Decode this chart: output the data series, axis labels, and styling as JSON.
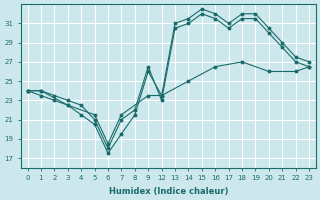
{
  "xlabel": "Humidex (Indice chaleur)",
  "background_color": "#cce8ec",
  "grid_color": "#ffffff",
  "line_color": "#1a6b6b",
  "ylim": [
    16,
    33
  ],
  "yticks": [
    17,
    19,
    21,
    23,
    25,
    27,
    29,
    31
  ],
  "xtick_labels": [
    "0",
    "1",
    "2",
    "3",
    "4",
    "5",
    "6",
    "7",
    "8",
    "9",
    "12",
    "13",
    "14",
    "15",
    "16",
    "17",
    "18",
    "19",
    "20",
    "21",
    "22",
    "23"
  ],
  "xtick_positions": [
    0,
    1,
    2,
    3,
    4,
    5,
    6,
    7,
    8,
    9,
    10,
    11,
    12,
    13,
    14,
    15,
    16,
    17,
    18,
    19,
    20,
    21
  ],
  "xlim": [
    -0.5,
    21.5
  ],
  "line1": {
    "x": [
      0,
      1,
      2,
      3,
      4,
      5,
      6,
      7,
      8,
      9,
      10,
      11,
      12,
      13,
      14,
      15,
      16,
      17,
      18,
      19,
      20,
      21
    ],
    "y": [
      24,
      23.5,
      23,
      22.5,
      21.5,
      20.5,
      17.5,
      19.5,
      21.5,
      26,
      23.5,
      31,
      31.5,
      32.5,
      32,
      31,
      32,
      32,
      30.5,
      29,
      27.5,
      27
    ]
  },
  "line2": {
    "x": [
      0,
      1,
      2,
      3,
      4,
      5,
      6,
      7,
      8,
      9,
      10,
      11,
      12,
      13,
      14,
      15,
      16,
      17,
      18,
      19,
      20,
      21
    ],
    "y": [
      24,
      24,
      23.5,
      23,
      22.5,
      21,
      18,
      21,
      22,
      26.5,
      23,
      30.5,
      31,
      32,
      31.5,
      30.5,
      31.5,
      31.5,
      30,
      28.5,
      27,
      26.5
    ]
  },
  "line3": {
    "x": [
      0,
      1,
      3,
      5,
      6,
      7,
      9,
      10,
      12,
      14,
      16,
      18,
      20,
      21
    ],
    "y": [
      24,
      24,
      22.5,
      21.5,
      18.5,
      21.5,
      23.5,
      23.5,
      25,
      26.5,
      27,
      26,
      26,
      26.5
    ]
  }
}
